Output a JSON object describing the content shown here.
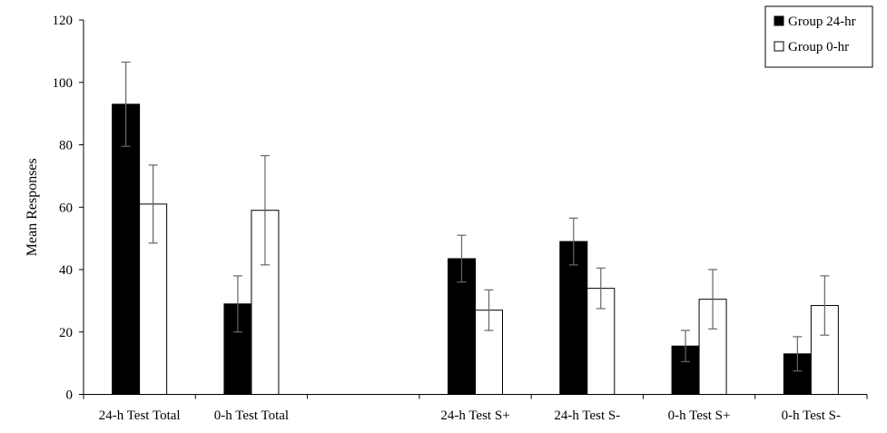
{
  "chart_data": {
    "type": "bar",
    "title": "",
    "xlabel": "",
    "ylabel": "Mean Responses",
    "ylim": [
      0,
      120
    ],
    "yticks": [
      0,
      20,
      40,
      60,
      80,
      100,
      120
    ],
    "grid": false,
    "legend_position": "top-right",
    "categories": [
      "24-h Test Total",
      "0-h Test Total",
      "",
      "24-h Test S+",
      "24-h Test S-",
      "0-h Test S+",
      "0-h Test S-"
    ],
    "series": [
      {
        "name": "Group 24-hr",
        "color": "#000000",
        "values": [
          93,
          29,
          null,
          43.5,
          49,
          15.5,
          13
        ],
        "errors": [
          13.5,
          9,
          null,
          7.5,
          7.5,
          5,
          5.5
        ]
      },
      {
        "name": "Group 0-hr",
        "color": "#ffffff",
        "values": [
          61,
          59,
          null,
          27,
          34,
          30.5,
          28.5
        ],
        "errors": [
          12.5,
          17.5,
          null,
          6.5,
          6.5,
          9.5,
          9.5
        ]
      }
    ]
  }
}
